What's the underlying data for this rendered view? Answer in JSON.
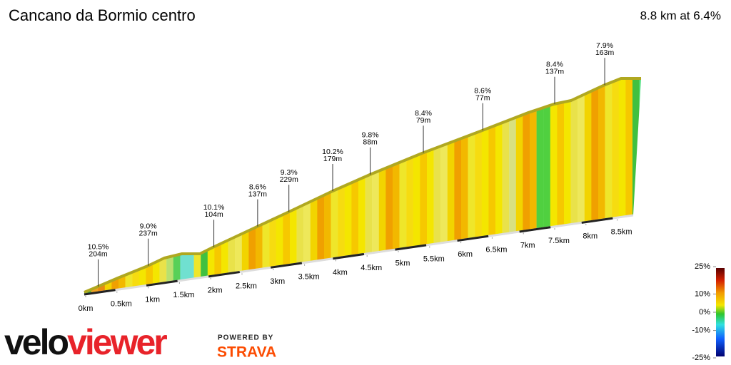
{
  "chart_data": {
    "type": "elevation-profile",
    "title": "Cancano da Bormio centro",
    "summary": "8.8 km at 6.4%",
    "xticks": [
      {
        "value": 0,
        "label": "0km"
      },
      {
        "value": 0.5,
        "label": "0.5km"
      },
      {
        "value": 1,
        "label": "1km"
      },
      {
        "value": 1.5,
        "label": "1.5km"
      },
      {
        "value": 2,
        "label": "2km"
      },
      {
        "value": 2.5,
        "label": "2.5km"
      },
      {
        "value": 3,
        "label": "3km"
      },
      {
        "value": 3.5,
        "label": "3.5km"
      },
      {
        "value": 4,
        "label": "4km"
      },
      {
        "value": 4.5,
        "label": "4.5km"
      },
      {
        "value": 5,
        "label": "5km"
      },
      {
        "value": 5.5,
        "label": "5.5km"
      },
      {
        "value": 6,
        "label": "6km"
      },
      {
        "value": 6.5,
        "label": "6.5km"
      },
      {
        "value": 7,
        "label": "7km"
      },
      {
        "value": 7.5,
        "label": "7.5km"
      },
      {
        "value": 8,
        "label": "8km"
      },
      {
        "value": 8.5,
        "label": "8.5km"
      }
    ],
    "annotations": [
      {
        "x": 0.2,
        "value": 10.5,
        "label": "10.5%",
        "length": 204,
        "length_label": "204m"
      },
      {
        "x": 1.0,
        "value": 9.0,
        "label": "9.0%",
        "length": 237,
        "length_label": "237m"
      },
      {
        "x": 2.05,
        "value": 10.1,
        "label": "10.1%",
        "length": 104,
        "length_label": "104m"
      },
      {
        "x": 2.75,
        "value": 8.6,
        "label": "8.6%",
        "length": 137,
        "length_label": "137m"
      },
      {
        "x": 3.25,
        "value": 9.3,
        "label": "9.3%",
        "length": 229,
        "length_label": "229m"
      },
      {
        "x": 3.95,
        "value": 10.2,
        "label": "10.2%",
        "length": 179,
        "length_label": "179m"
      },
      {
        "x": 4.55,
        "value": 9.8,
        "label": "9.8%",
        "length": 88,
        "length_label": "88m"
      },
      {
        "x": 5.4,
        "value": 8.4,
        "label": "8.4%",
        "length": 79,
        "length_label": "79m"
      },
      {
        "x": 6.35,
        "value": 8.6,
        "label": "8.6%",
        "length": 77,
        "length_label": "77m"
      },
      {
        "x": 7.5,
        "value": 8.4,
        "label": "8.4%",
        "length": 137,
        "length_label": "137m"
      },
      {
        "x": 8.3,
        "value": 7.9,
        "label": "7.9%",
        "length": 163,
        "length_label": "163m"
      }
    ],
    "colorbar_ticks": [
      {
        "value": 25,
        "label": "25%"
      },
      {
        "value": 10,
        "label": "10%"
      },
      {
        "value": 0,
        "label": "0%"
      },
      {
        "value": -10,
        "label": "-10%"
      },
      {
        "value": -25,
        "label": "-25%"
      }
    ],
    "logo": [
      "velo",
      "viewer"
    ],
    "powered_by": "POWERED BY",
    "strava": "STRAVA"
  }
}
